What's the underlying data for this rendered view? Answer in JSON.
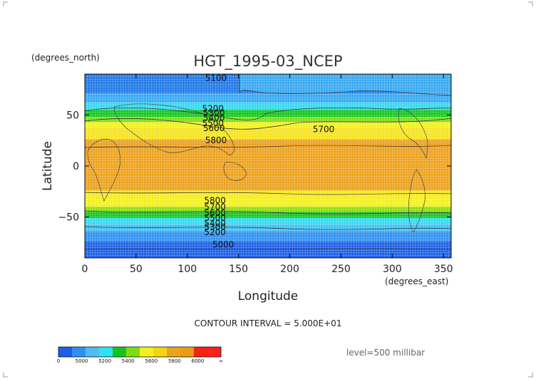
{
  "chart_data": {
    "type": "heatmap",
    "title": "HGT_1995-03_NCEP",
    "xlabel": "Longitude",
    "ylabel": "Latitude",
    "x_units": "(degrees_east)",
    "y_units": "(degrees_north)",
    "xlim": [
      0,
      357.5
    ],
    "ylim": [
      -90,
      90
    ],
    "xticks": [
      0,
      50,
      100,
      150,
      200,
      250,
      300,
      350
    ],
    "yticks": [
      -50,
      0,
      50
    ],
    "contour_interval_text": "CONTOUR INTERVAL = 5.000E+01",
    "level_text": "level=500 millibar",
    "grid": true,
    "contour_labels": [
      {
        "text": "5100",
        "lon": 128,
        "lat": 86
      },
      {
        "text": "5200",
        "lon": 125,
        "lat": 56
      },
      {
        "text": "5300",
        "lon": 126,
        "lat": 52
      },
      {
        "text": "5400",
        "lon": 126,
        "lat": 47
      },
      {
        "text": "5500",
        "lon": 125,
        "lat": 42
      },
      {
        "text": "5600",
        "lon": 126,
        "lat": 37
      },
      {
        "text": "5700",
        "lon": 233,
        "lat": 36
      },
      {
        "text": "5800",
        "lon": 128,
        "lat": 25
      },
      {
        "text": "5800",
        "lon": 127,
        "lat": -34
      },
      {
        "text": "5700",
        "lon": 127,
        "lat": -40
      },
      {
        "text": "5600",
        "lon": 127,
        "lat": -46
      },
      {
        "text": "5500",
        "lon": 127,
        "lat": -51
      },
      {
        "text": "5400",
        "lon": 127,
        "lat": -56
      },
      {
        "text": "5300",
        "lon": 127,
        "lat": -60
      },
      {
        "text": "5200",
        "lon": 127,
        "lat": -65
      },
      {
        "text": "5000",
        "lon": 135,
        "lat": -77
      }
    ],
    "colorbar": {
      "labels": [
        "0",
        "5000",
        "5200",
        "5400",
        "5600",
        "5800",
        "6000",
        "∞"
      ],
      "colors": [
        "#1a5fe8",
        "#2f8ff0",
        "#4fbbf3",
        "#2ee2f0",
        "#14c51e",
        "#7ddd10",
        "#f2f21a",
        "#f2d412",
        "#e9a41e",
        "#ee9b14",
        "#f6220e",
        "#ff1f1f"
      ]
    },
    "bands": [
      {
        "lat": [
          71,
          90
        ],
        "color": "#1e78e8"
      },
      {
        "lat": [
          62,
          71
        ],
        "color": "#35a8f2"
      },
      {
        "lat": [
          55,
          62
        ],
        "color": "#2fd9ef"
      },
      {
        "lat": [
          48,
          55
        ],
        "color": "#10c81e"
      },
      {
        "lat": [
          43,
          48
        ],
        "color": "#7ddc12"
      },
      {
        "lat": [
          37,
          43
        ],
        "color": "#f2f21a"
      },
      {
        "lat": [
          26,
          37
        ],
        "color": "#f6e31a"
      },
      {
        "lat": [
          -24,
          26
        ],
        "color": "#eda11c"
      },
      {
        "lat": [
          -33,
          -24
        ],
        "color": "#f7ec1a"
      },
      {
        "lat": [
          -40,
          -33
        ],
        "color": "#f2f21a"
      },
      {
        "lat": [
          -45,
          -40
        ],
        "color": "#8ddc10"
      },
      {
        "lat": [
          -51,
          -45
        ],
        "color": "#12c61e"
      },
      {
        "lat": [
          -57,
          -51
        ],
        "color": "#2fdcef"
      },
      {
        "lat": [
          -64,
          -57
        ],
        "color": "#3fc0f2"
      },
      {
        "lat": [
          -74,
          -64
        ],
        "color": "#2f90ee"
      },
      {
        "lat": [
          -90,
          -74
        ],
        "color": "#1a5fe8"
      }
    ]
  }
}
